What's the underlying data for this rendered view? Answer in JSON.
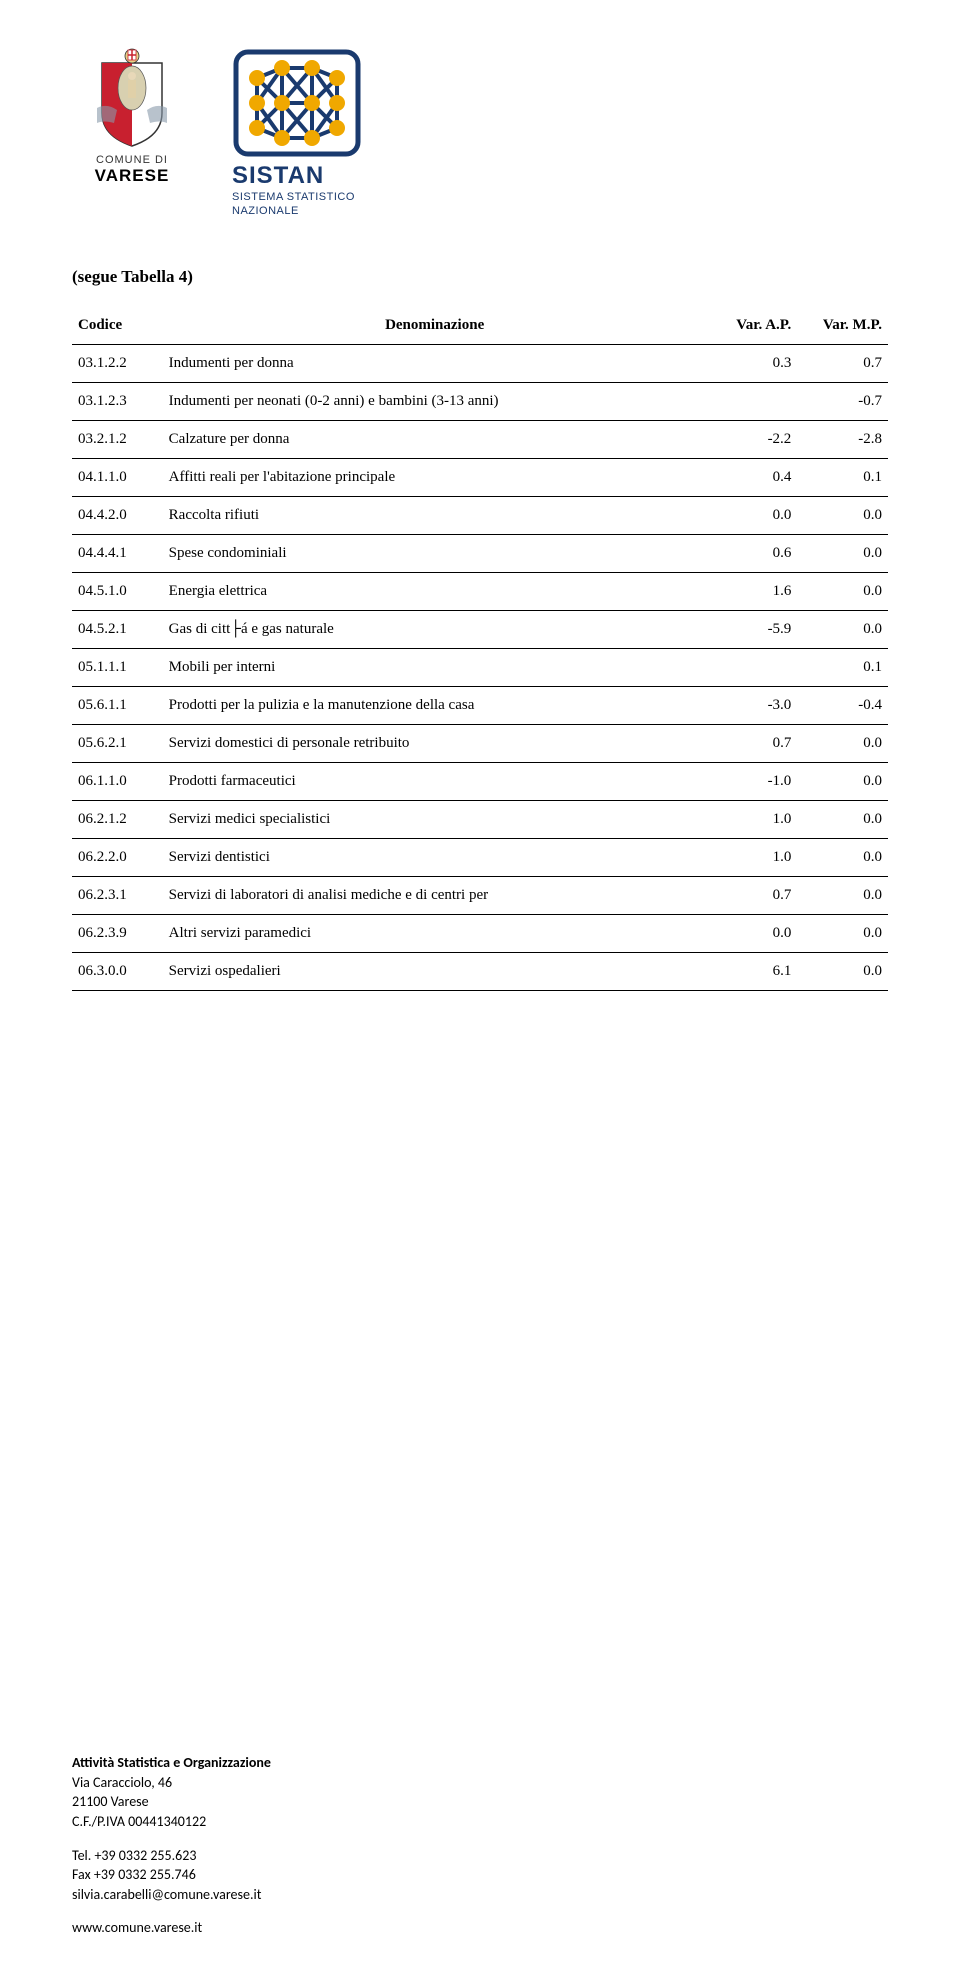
{
  "logos": {
    "varese_line1": "COMUNE DI",
    "varese_line2": "VARESE",
    "sistan_title": "SISTAN",
    "sistan_sub1": "SISTEMA STATISTICO",
    "sistan_sub2": "NAZIONALE"
  },
  "segue_label": "(segue Tabella 4)",
  "table": {
    "headers": {
      "code": "Codice",
      "desc": "Denominazione",
      "var_ap": "Var. A.P.",
      "var_mp": "Var. M.P."
    },
    "rows": [
      {
        "code": "03.1.2.2",
        "desc": "Indumenti per donna",
        "ap": "0.3",
        "mp": "0.7"
      },
      {
        "code": "03.1.2.3",
        "desc": "Indumenti per neonati (0-2 anni) e bambini (3-13 anni)",
        "ap": "",
        "mp": "-0.7"
      },
      {
        "code": "03.2.1.2",
        "desc": "Calzature per donna",
        "ap": "-2.2",
        "mp": "-2.8"
      },
      {
        "code": "04.1.1.0",
        "desc": "Affitti reali per l'abitazione principale",
        "ap": "0.4",
        "mp": "0.1"
      },
      {
        "code": "04.4.2.0",
        "desc": "Raccolta rifiuti",
        "ap": "0.0",
        "mp": "0.0"
      },
      {
        "code": "04.4.4.1",
        "desc": "Spese condominiali",
        "ap": "0.6",
        "mp": "0.0"
      },
      {
        "code": "04.5.1.0",
        "desc": "Energia elettrica",
        "ap": "1.6",
        "mp": "0.0"
      },
      {
        "code": "04.5.2.1",
        "desc": "Gas di citt├á e gas naturale",
        "ap": "-5.9",
        "mp": "0.0"
      },
      {
        "code": "05.1.1.1",
        "desc": "Mobili per interni",
        "ap": "",
        "mp": "0.1"
      },
      {
        "code": "05.6.1.1",
        "desc": "Prodotti per la pulizia e la manutenzione della casa",
        "ap": "-3.0",
        "mp": "-0.4"
      },
      {
        "code": "05.6.2.1",
        "desc": "Servizi domestici di personale retribuito",
        "ap": "0.7",
        "mp": "0.0"
      },
      {
        "code": "06.1.1.0",
        "desc": "Prodotti farmaceutici",
        "ap": "-1.0",
        "mp": "0.0"
      },
      {
        "code": "06.2.1.2",
        "desc": "Servizi medici specialistici",
        "ap": "1.0",
        "mp": "0.0"
      },
      {
        "code": "06.2.2.0",
        "desc": "Servizi dentistici",
        "ap": "1.0",
        "mp": "0.0"
      },
      {
        "code": "06.2.3.1",
        "desc": "Servizi di laboratori di analisi mediche e di centri per",
        "ap": "0.7",
        "mp": "0.0"
      },
      {
        "code": "06.2.3.9",
        "desc": "Altri servizi paramedici",
        "ap": "0.0",
        "mp": "0.0"
      },
      {
        "code": "06.3.0.0",
        "desc": "Servizi ospedalieri",
        "ap": "6.1",
        "mp": "0.0"
      }
    ]
  },
  "footer": {
    "org": "Attività Statistica e Organizzazione",
    "addr1": "Via Caracciolo, 46",
    "addr2": "21100 Varese",
    "cf": "C.F./P.IVA 00441340122",
    "tel": "Tel. +39 0332 255.623",
    "fax": "Fax +39 0332 255.746",
    "email": "silvia.carabelli@comune.varese.it",
    "web": "www.comune.varese.it"
  },
  "colors": {
    "sistan_blue": "#1a3a6e",
    "sistan_yellow": "#f0a800",
    "varese_red": "#c8202f",
    "border": "#000000"
  }
}
